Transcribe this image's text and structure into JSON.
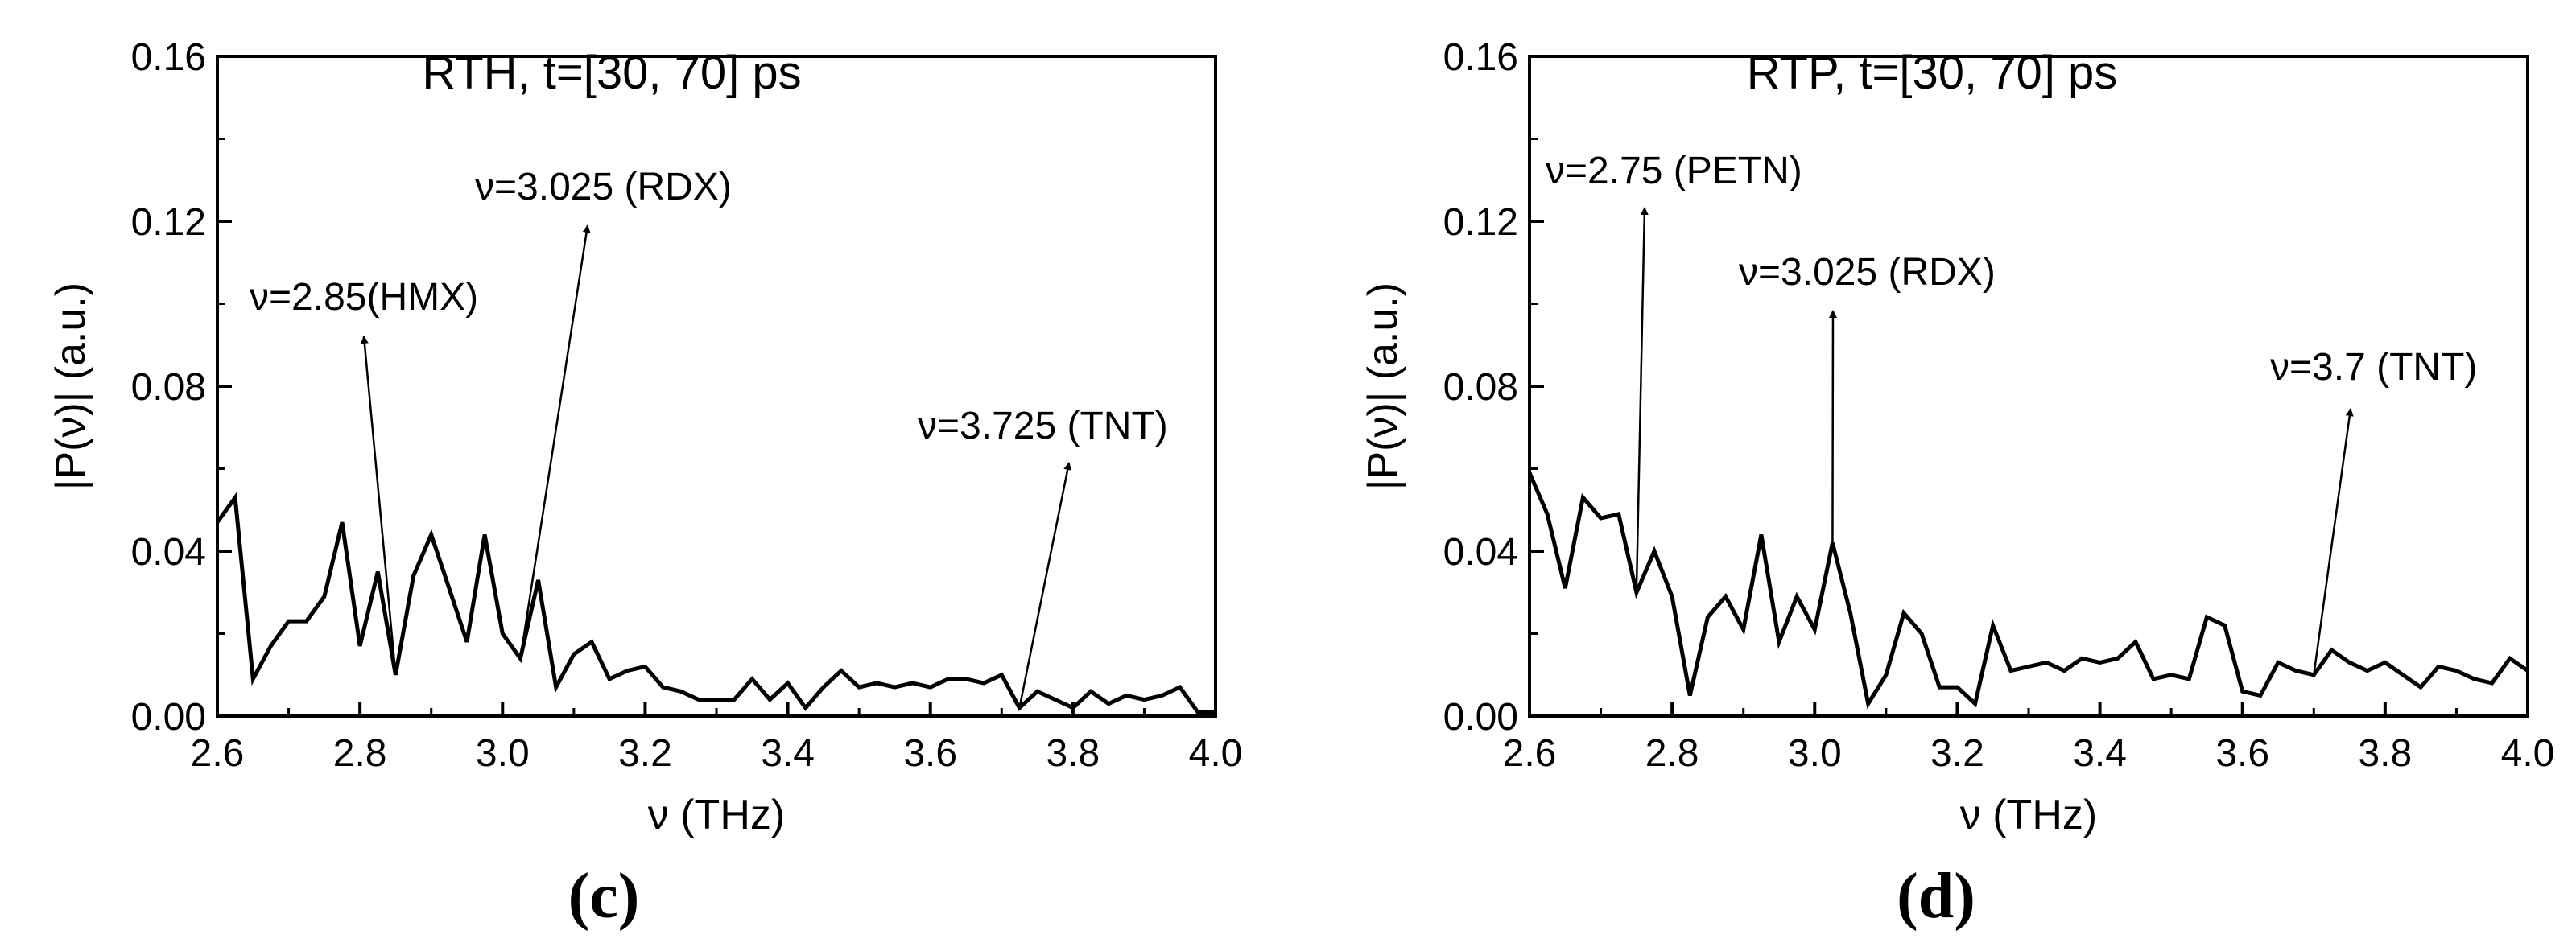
{
  "chart_data": [
    {
      "type": "line",
      "panel_label": "(c)",
      "title": "RTH, t=[30, 70] ps",
      "xlabel": "ν (THz)",
      "ylabel": "|P(ν)| (a.u.)",
      "xlim": [
        2.6,
        4.0
      ],
      "ylim": [
        0.0,
        0.16
      ],
      "xticks": [
        2.6,
        2.8,
        3.0,
        3.2,
        3.4,
        3.6,
        3.8,
        4.0
      ],
      "xtick_labels": [
        "2.6",
        "2.8",
        "3.0",
        "3.2",
        "3.4",
        "3.6",
        "3.8",
        "4.0"
      ],
      "yticks": [
        0.0,
        0.04,
        0.08,
        0.12,
        0.16
      ],
      "ytick_labels": [
        "0.00",
        "0.04",
        "0.08",
        "0.12",
        "0.16"
      ],
      "grid": false,
      "line_color": "#000000",
      "series": [
        {
          "x": [
            2.6,
            2.625,
            2.65,
            2.675,
            2.7,
            2.725,
            2.75,
            2.775,
            2.8,
            2.825,
            2.85,
            2.875,
            2.9,
            2.925,
            2.95,
            2.975,
            3.0,
            3.025,
            3.05,
            3.075,
            3.1,
            3.125,
            3.15,
            3.175,
            3.2,
            3.225,
            3.25,
            3.275,
            3.3,
            3.325,
            3.35,
            3.375,
            3.4,
            3.425,
            3.45,
            3.475,
            3.5,
            3.525,
            3.55,
            3.575,
            3.6,
            3.625,
            3.65,
            3.675,
            3.7,
            3.725,
            3.75,
            3.775,
            3.8,
            3.825,
            3.85,
            3.875,
            3.9,
            3.925,
            3.95,
            3.975,
            4.0
          ],
          "y": [
            0.047,
            0.053,
            0.009,
            0.017,
            0.023,
            0.023,
            0.029,
            0.047,
            0.017,
            0.035,
            0.01,
            0.034,
            0.044,
            0.031,
            0.018,
            0.044,
            0.02,
            0.014,
            0.033,
            0.007,
            0.015,
            0.018,
            0.009,
            0.011,
            0.012,
            0.007,
            0.006,
            0.004,
            0.004,
            0.004,
            0.009,
            0.004,
            0.008,
            0.002,
            0.007,
            0.011,
            0.007,
            0.008,
            0.007,
            0.008,
            0.007,
            0.009,
            0.009,
            0.008,
            0.01,
            0.002,
            0.006,
            0.004,
            0.002,
            0.006,
            0.003,
            0.005,
            0.004,
            0.005,
            0.007,
            0.001,
            0.001
          ]
        }
      ],
      "annotations": [
        {
          "text": "ν=2.85(HMX)",
          "x": 2.85
        },
        {
          "text": "ν=3.025 (RDX)",
          "x": 3.025
        },
        {
          "text": "ν=3.725 (TNT)",
          "x": 3.725
        }
      ]
    },
    {
      "type": "line",
      "panel_label": "(d)",
      "title": "RTP, t=[30, 70] ps",
      "xlabel": "ν (THz)",
      "ylabel": "|P(ν)| (a.u.)",
      "xlim": [
        2.6,
        4.0
      ],
      "ylim": [
        0.0,
        0.16
      ],
      "xticks": [
        2.6,
        2.8,
        3.0,
        3.2,
        3.4,
        3.6,
        3.8,
        4.0
      ],
      "xtick_labels": [
        "2.6",
        "2.8",
        "3.0",
        "3.2",
        "3.4",
        "3.6",
        "3.8",
        "4.0"
      ],
      "yticks": [
        0.0,
        0.04,
        0.08,
        0.12,
        0.16
      ],
      "ytick_labels": [
        "0.00",
        "0.04",
        "0.08",
        "0.12",
        "0.16"
      ],
      "grid": false,
      "line_color": "#000000",
      "series": [
        {
          "x": [
            2.6,
            2.625,
            2.65,
            2.675,
            2.7,
            2.725,
            2.75,
            2.775,
            2.8,
            2.825,
            2.85,
            2.875,
            2.9,
            2.925,
            2.95,
            2.975,
            3.0,
            3.025,
            3.05,
            3.075,
            3.1,
            3.125,
            3.15,
            3.175,
            3.2,
            3.225,
            3.25,
            3.275,
            3.3,
            3.325,
            3.35,
            3.375,
            3.4,
            3.425,
            3.45,
            3.475,
            3.5,
            3.525,
            3.55,
            3.575,
            3.6,
            3.625,
            3.65,
            3.675,
            3.7,
            3.725,
            3.75,
            3.775,
            3.8,
            3.825,
            3.85,
            3.875,
            3.9,
            3.925,
            3.95,
            3.975,
            4.0
          ],
          "y": [
            0.059,
            0.049,
            0.031,
            0.053,
            0.048,
            0.049,
            0.03,
            0.04,
            0.029,
            0.005,
            0.024,
            0.029,
            0.021,
            0.044,
            0.018,
            0.029,
            0.021,
            0.042,
            0.025,
            0.003,
            0.01,
            0.025,
            0.02,
            0.007,
            0.007,
            0.003,
            0.022,
            0.011,
            0.012,
            0.013,
            0.011,
            0.014,
            0.013,
            0.014,
            0.018,
            0.009,
            0.01,
            0.009,
            0.024,
            0.022,
            0.006,
            0.005,
            0.013,
            0.011,
            0.01,
            0.016,
            0.013,
            0.011,
            0.013,
            0.01,
            0.007,
            0.012,
            0.011,
            0.009,
            0.008,
            0.014,
            0.011
          ]
        }
      ],
      "annotations": [
        {
          "text": "ν=2.75 (PETN)",
          "x": 2.75
        },
        {
          "text": "ν=3.025 (RDX)",
          "x": 3.025
        },
        {
          "text": "ν=3.7 (TNT)",
          "x": 3.7
        }
      ]
    }
  ]
}
